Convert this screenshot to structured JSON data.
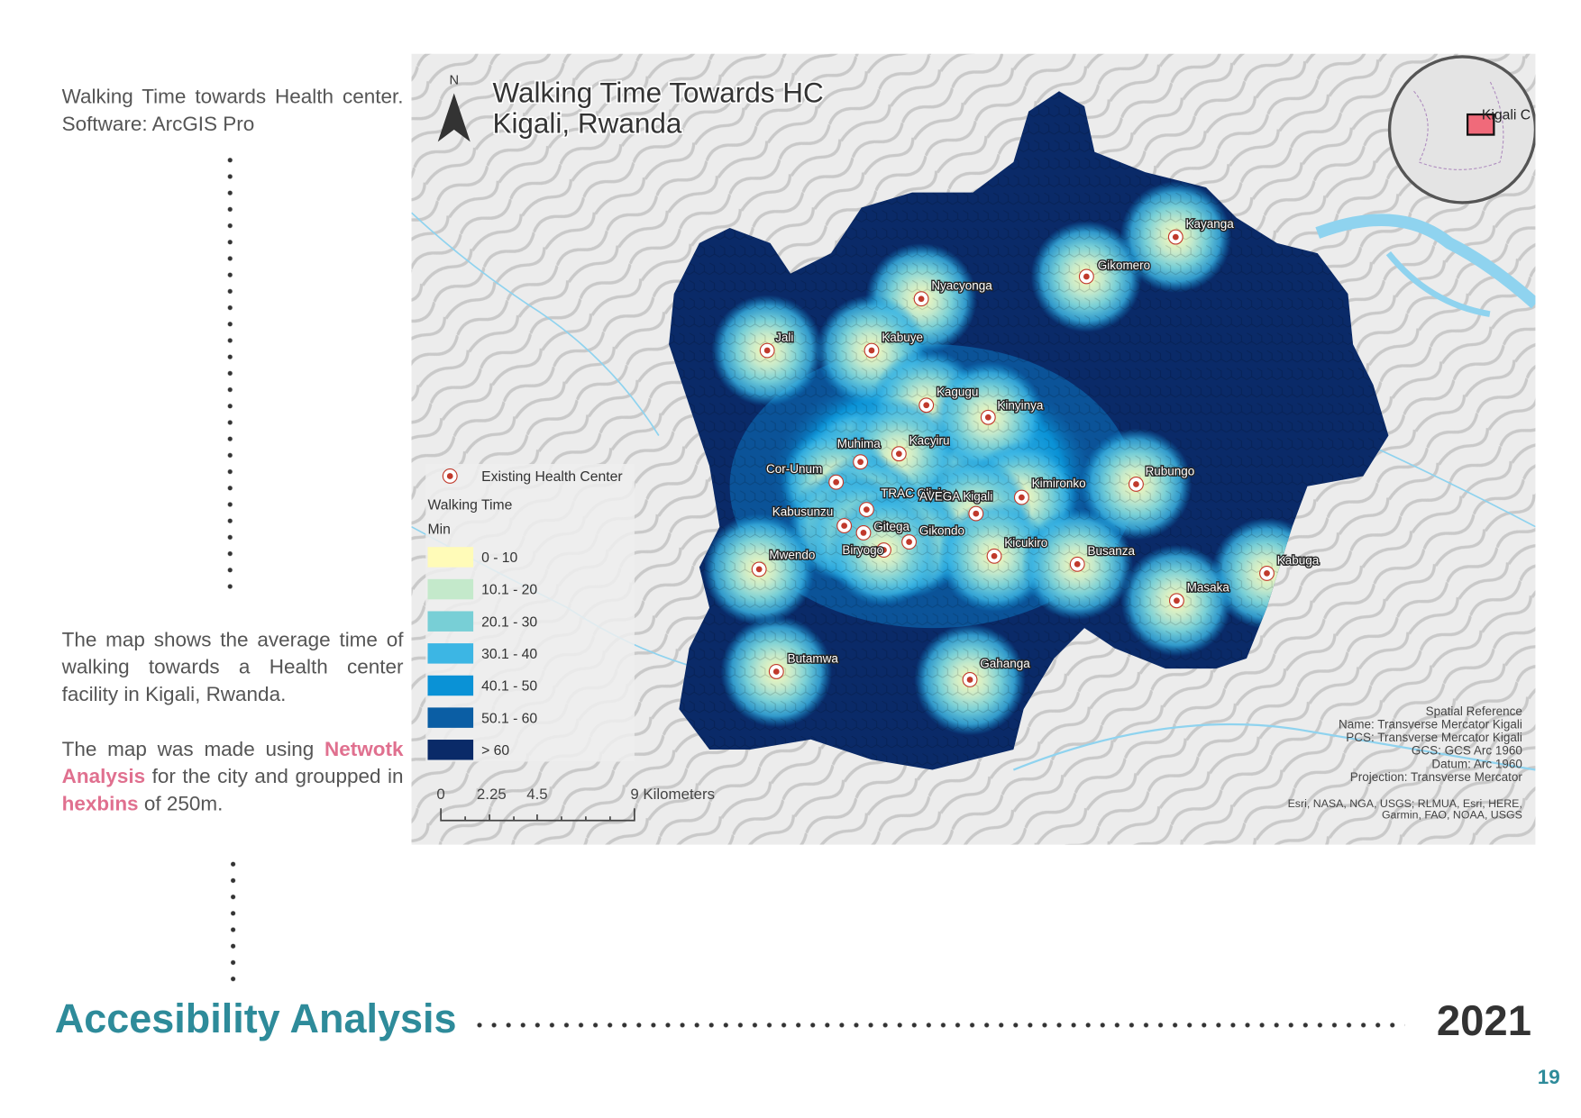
{
  "sidebar": {
    "caption": "Walking Time towards Health center. Software: ArcGIS Pro",
    "description": "The map shows the average time of walking towards a Health center facility in Kigali, Rwanda.",
    "method": [
      "The map was made using ",
      "Netwotk Analysis",
      " for the city and groupped in ",
      "hexbins",
      " of 250m."
    ]
  },
  "map": {
    "title": [
      "Walking Time Towards HC",
      "Kigali, Rwanda"
    ],
    "north": "N",
    "inset_label": "Kigali C",
    "places": [
      "Kayanga",
      "Gikomero",
      "Nyacyonga",
      "Jali",
      "Kabuye",
      "Kagugu",
      "Kinyinya",
      "Muhima",
      "Kacyiru",
      "Cor-Unum",
      "Rubungo",
      "Kimironko",
      "TRAC Clinic",
      "AVEGA Kigali",
      "Kabusunzu",
      "Gitega",
      "Gikondo",
      "Biryogo",
      "Kicukiro",
      "Busanza",
      "Mwendo",
      "Kabuga",
      "Masaka",
      "Butamwa",
      "Gahanga"
    ],
    "legend": {
      "marker_label": "Existing Health Center",
      "title": "Walking Time",
      "unit": "Min",
      "classes": [
        {
          "label": "0 - 10",
          "color": "#fffbb8"
        },
        {
          "label": "10.1 - 20",
          "color": "#c4e9cb"
        },
        {
          "label": "20.1 - 30",
          "color": "#78cfd6"
        },
        {
          "label": "30.1 - 40",
          "color": "#3cb6e4"
        },
        {
          "label": "40.1 - 50",
          "color": "#0a92d6"
        },
        {
          "label": "50.1 - 60",
          "color": "#0b5ea4"
        },
        {
          "label": "> 60",
          "color": "#0a2a68"
        }
      ]
    },
    "scale_bar": [
      "0",
      "2.25",
      "4.5",
      "9 Kilometers"
    ],
    "spatial_reference": [
      "Spatial Reference",
      "Name: Transverse Mercator Kigali",
      "PCS: Transverse Mercator Kigali",
      "GCS: GCS Arc 1960",
      "Datum: Arc 1960",
      "Projection: Transverse Mercator"
    ],
    "attribution": [
      "Esri, NASA, NGA, USGS; RLMUA, Esri, HERE,",
      "Garmin, FAO, NOAA, USGS"
    ]
  },
  "footer": {
    "title": "Accesibility Analysis",
    "year": "2021",
    "page": "19"
  }
}
